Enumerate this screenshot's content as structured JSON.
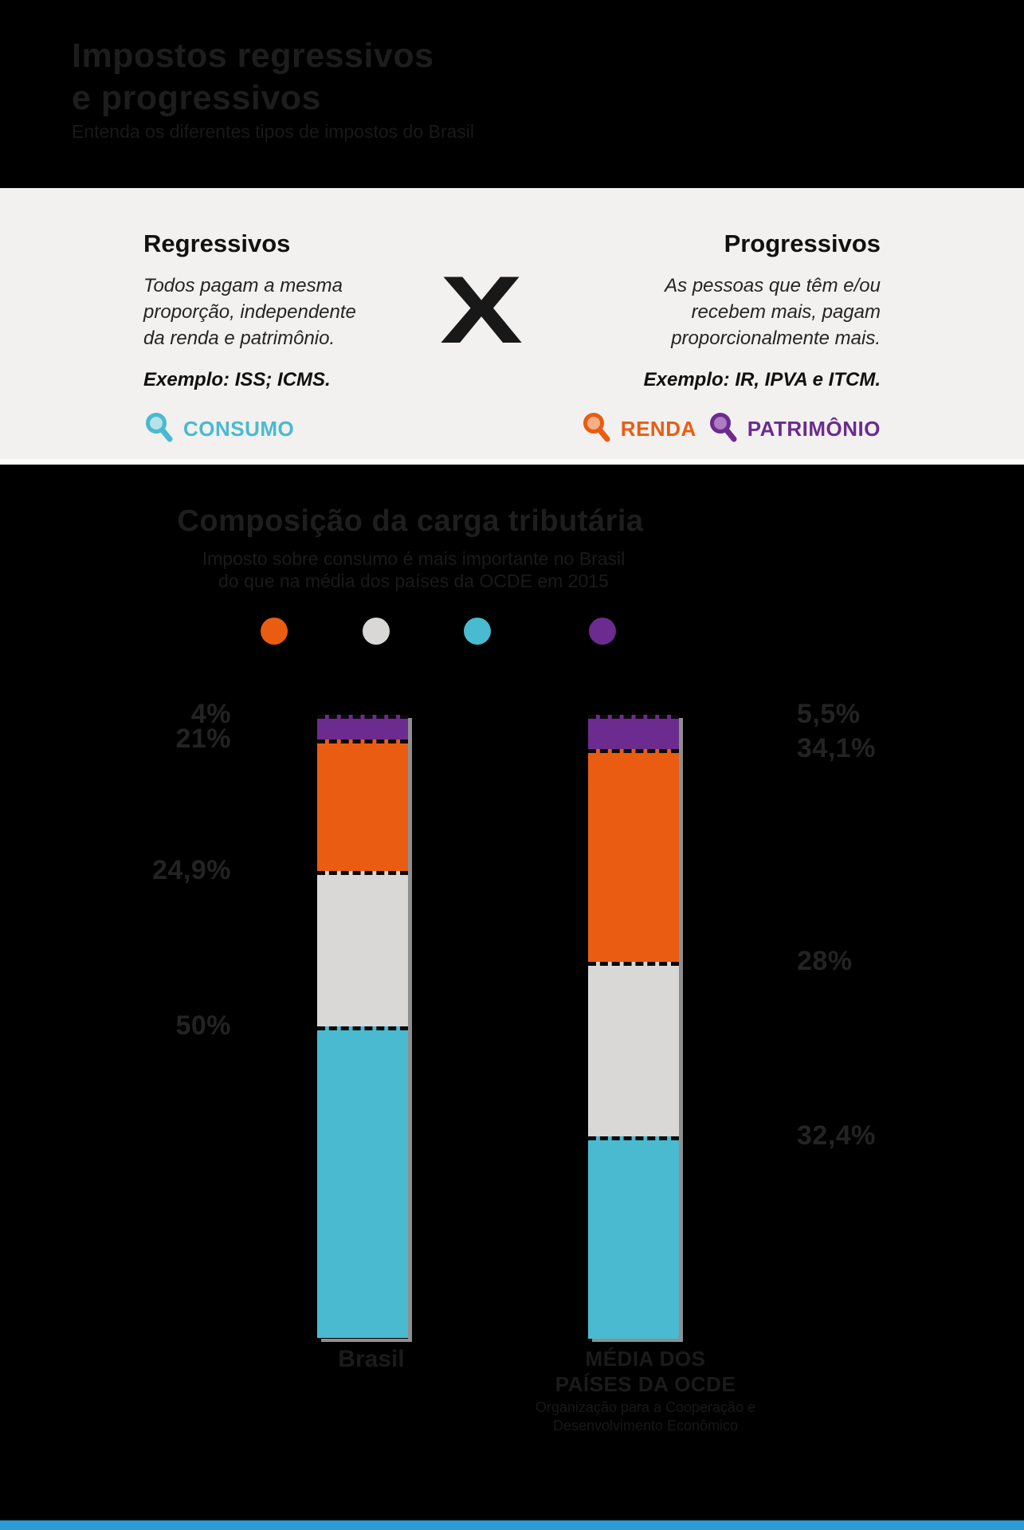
{
  "header": {
    "title_lines": [
      "Impostos regressivos",
      "e progressivos"
    ],
    "subtitle": "Entenda os diferentes tipos de impostos do Brasil"
  },
  "comparison": {
    "versus_mark": "X",
    "regressivos": {
      "heading": "Regressivos",
      "description_lines": [
        "Todos pagam a mesma",
        "proporção, independente",
        "da renda e patrimônio."
      ],
      "example": "Exemplo: ISS; ICMS.",
      "tag": {
        "label": "CONSUMO",
        "color": "#49BACF"
      }
    },
    "progressivos": {
      "heading": "Progressivos",
      "description_lines": [
        "As pessoas que têm e/ou",
        "recebem mais, pagam",
        "proporcionalmente mais."
      ],
      "example": "Exemplo: IR, IPVA e ITCM.",
      "tags": [
        {
          "label": "RENDA",
          "color": "#EA5C12"
        },
        {
          "label": "PATRIMÔNIO",
          "color": "#6C2B8E"
        }
      ]
    }
  },
  "chart_data": {
    "type": "bar",
    "variant": "stacked-column",
    "title": "Composição da carga tributária",
    "subtitle_lines": [
      "Imposto sobre consumo é mais importante no Brasil",
      "do que na média dos países da OCDE em 2015"
    ],
    "categories": [
      "Brasil",
      "Média dos países da OCDE"
    ],
    "unit": "%",
    "ylim": [
      0,
      100
    ],
    "stack_order": "top-to-bottom",
    "series": [
      {
        "name": "patrimonio",
        "color": "#6C2B8E",
        "values": [
          4,
          5.5
        ],
        "display": [
          "4%",
          "5,5%"
        ]
      },
      {
        "name": "renda",
        "color": "#EA5C12",
        "values": [
          21,
          34.1
        ],
        "display": [
          "21%",
          "34,1%"
        ]
      },
      {
        "name": "cinza-sem-rotulo",
        "color": "#D9D8D7",
        "values": [
          24.9,
          28
        ],
        "display": [
          "24,9%",
          "28%"
        ]
      },
      {
        "name": "consumo",
        "color": "#49BACF",
        "values": [
          50,
          32.4
        ],
        "display": [
          "50%",
          "32,4%"
        ]
      }
    ],
    "legend_dot_colors": [
      "#EA5C12",
      "#D9D8D7",
      "#49BACF",
      "#6C2B8E"
    ],
    "x_labels": {
      "brasil": "Brasil",
      "ocde_lines": [
        "MÉDIA DOS",
        "PAÍSES DA OCDE"
      ],
      "ocde_note_lines": [
        "Organização para a Cooperação e",
        "Desenvolvimento Econômico"
      ]
    }
  }
}
